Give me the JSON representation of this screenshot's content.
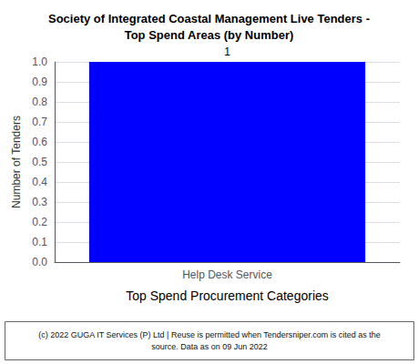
{
  "chart_data": {
    "type": "bar",
    "title": "Society of Integrated Coastal Management Live Tenders -\nTop Spend Areas (by Number)",
    "categories": [
      "Help Desk Service"
    ],
    "values": [
      1
    ],
    "color": "#0000FF",
    "xlabel": "Top Spend Procurement Categories",
    "ylabel": "Number of Tenders",
    "ylim": [
      0,
      1
    ],
    "yticks": [
      {
        "value": 0,
        "label": "0.0"
      },
      0.1,
      0.2,
      0.3,
      0.4,
      0.5,
      0.6,
      0.7,
      0.8,
      0.9,
      {
        "value": 1,
        "label": "1.0"
      }
    ],
    "grid": true,
    "data_labels": true,
    "annotations": [
      "(c) 2022 GUGA IT Services (P) Ltd | Reuse is permitted when Tendersniper.com is cited as the\nsource. Data as on 09 Jun 2022"
    ]
  }
}
